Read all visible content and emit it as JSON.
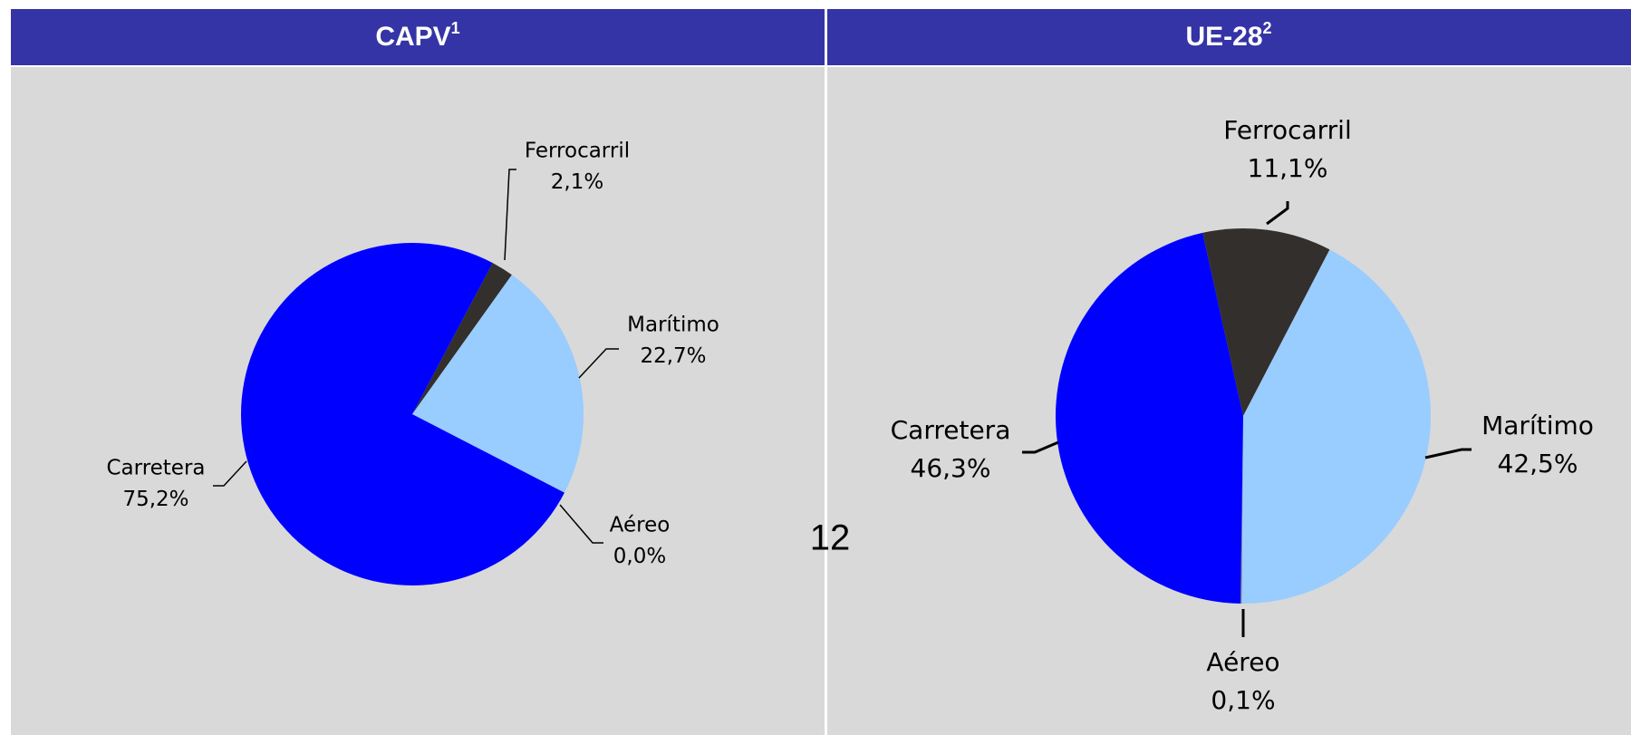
{
  "page_number": "12",
  "chart_data": [
    {
      "type": "pie",
      "title": "CAPV",
      "title_note": "1",
      "categories": [
        "Ferrocarril",
        "Marítimo",
        "Aéreo",
        "Carretera"
      ],
      "values": [
        2.1,
        22.7,
        0.0,
        75.2
      ],
      "value_labels": [
        "2,1%",
        "22,7%",
        "0,0%",
        "75,2%"
      ],
      "colors": [
        "#332f2c",
        "#99ccff",
        "#808080",
        "#0000ff"
      ]
    },
    {
      "type": "pie",
      "title": "UE-28",
      "title_note": "2",
      "categories": [
        "Ferrocarril",
        "Marítimo",
        "Aéreo",
        "Carretera"
      ],
      "values": [
        11.1,
        42.5,
        0.1,
        46.3
      ],
      "value_labels": [
        "11,1%",
        "42,5%",
        "0,1%",
        "46,3%"
      ],
      "colors": [
        "#332f2c",
        "#99ccff",
        "#808080",
        "#0000ff"
      ]
    }
  ]
}
